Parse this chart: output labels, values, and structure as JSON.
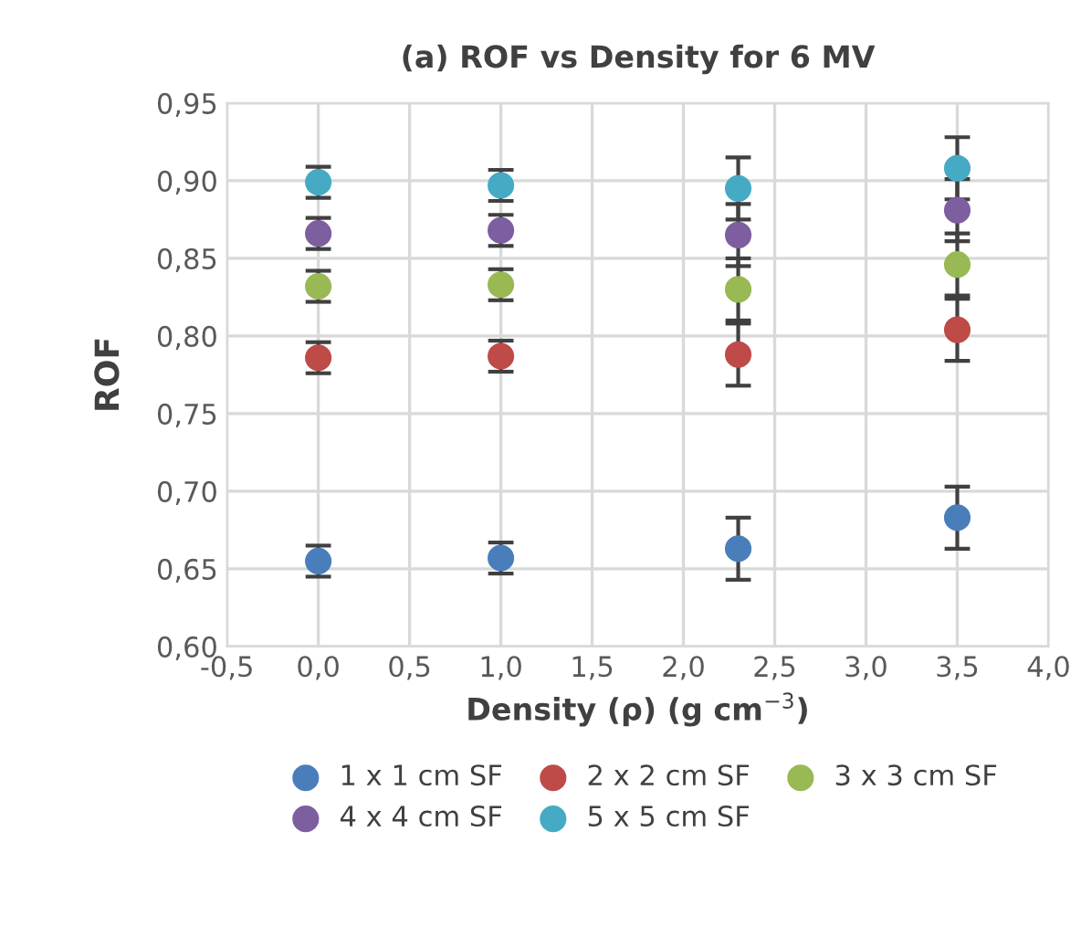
{
  "chart_data": {
    "type": "scatter",
    "title": "(a) ROF vs Density for 6 MV",
    "xlabel": "Density (ρ) (g cm$^{−3}$)",
    "ylabel": "ROF",
    "x": [
      0,
      1,
      2.3,
      3.5
    ],
    "series": [
      {
        "name": "1 x 1 cm SF",
        "color": "#4a7ebb",
        "values": [
          0.655,
          0.657,
          0.663,
          0.683
        ],
        "errors": [
          0.01,
          0.01,
          0.02,
          0.02
        ]
      },
      {
        "name": "2 x 2 cm SF",
        "color": "#be4b48",
        "values": [
          0.786,
          0.787,
          0.788,
          0.804
        ],
        "errors": [
          0.01,
          0.01,
          0.02,
          0.02
        ]
      },
      {
        "name": "3 x 3 cm SF",
        "color": "#98b954",
        "values": [
          0.832,
          0.833,
          0.83,
          0.846
        ],
        "errors": [
          0.01,
          0.01,
          0.02,
          0.02
        ]
      },
      {
        "name": "4 x 4 cm SF",
        "color": "#7d5fa0",
        "values": [
          0.866,
          0.868,
          0.865,
          0.881
        ],
        "errors": [
          0.01,
          0.01,
          0.02,
          0.02
        ]
      },
      {
        "name": "5 x 5 cm SF",
        "color": "#46aac5",
        "values": [
          0.899,
          0.897,
          0.895,
          0.908
        ],
        "errors": [
          0.01,
          0.01,
          0.02,
          0.02
        ]
      }
    ],
    "xlim": [
      -0.5,
      4.0
    ],
    "xticks": [
      {
        "value": -0.5,
        "label": "-0,5"
      },
      {
        "value": 0.0,
        "label": "0,0"
      },
      {
        "value": 0.5,
        "label": "0,5"
      },
      {
        "value": 1.0,
        "label": "1,0"
      },
      {
        "value": 1.5,
        "label": "1,5"
      },
      {
        "value": 2.0,
        "label": "2,0"
      },
      {
        "value": 2.5,
        "label": "2,5"
      },
      {
        "value": 3.0,
        "label": "3,0"
      },
      {
        "value": 3.5,
        "label": "3,5"
      },
      {
        "value": 4.0,
        "label": "4,0"
      }
    ],
    "ylim": [
      0.6,
      0.95
    ],
    "yticks": [
      {
        "value": 0.6,
        "label": "0,60"
      },
      {
        "value": 0.65,
        "label": "0,65"
      },
      {
        "value": 0.7,
        "label": "0,70"
      },
      {
        "value": 0.75,
        "label": "0,75"
      },
      {
        "value": 0.8,
        "label": "0,80"
      },
      {
        "value": 0.85,
        "label": "0,85"
      },
      {
        "value": 0.9,
        "label": "0,90"
      },
      {
        "value": 0.95,
        "label": "0,95"
      }
    ],
    "grid": true,
    "legend": "bottom",
    "marker": "circle"
  }
}
